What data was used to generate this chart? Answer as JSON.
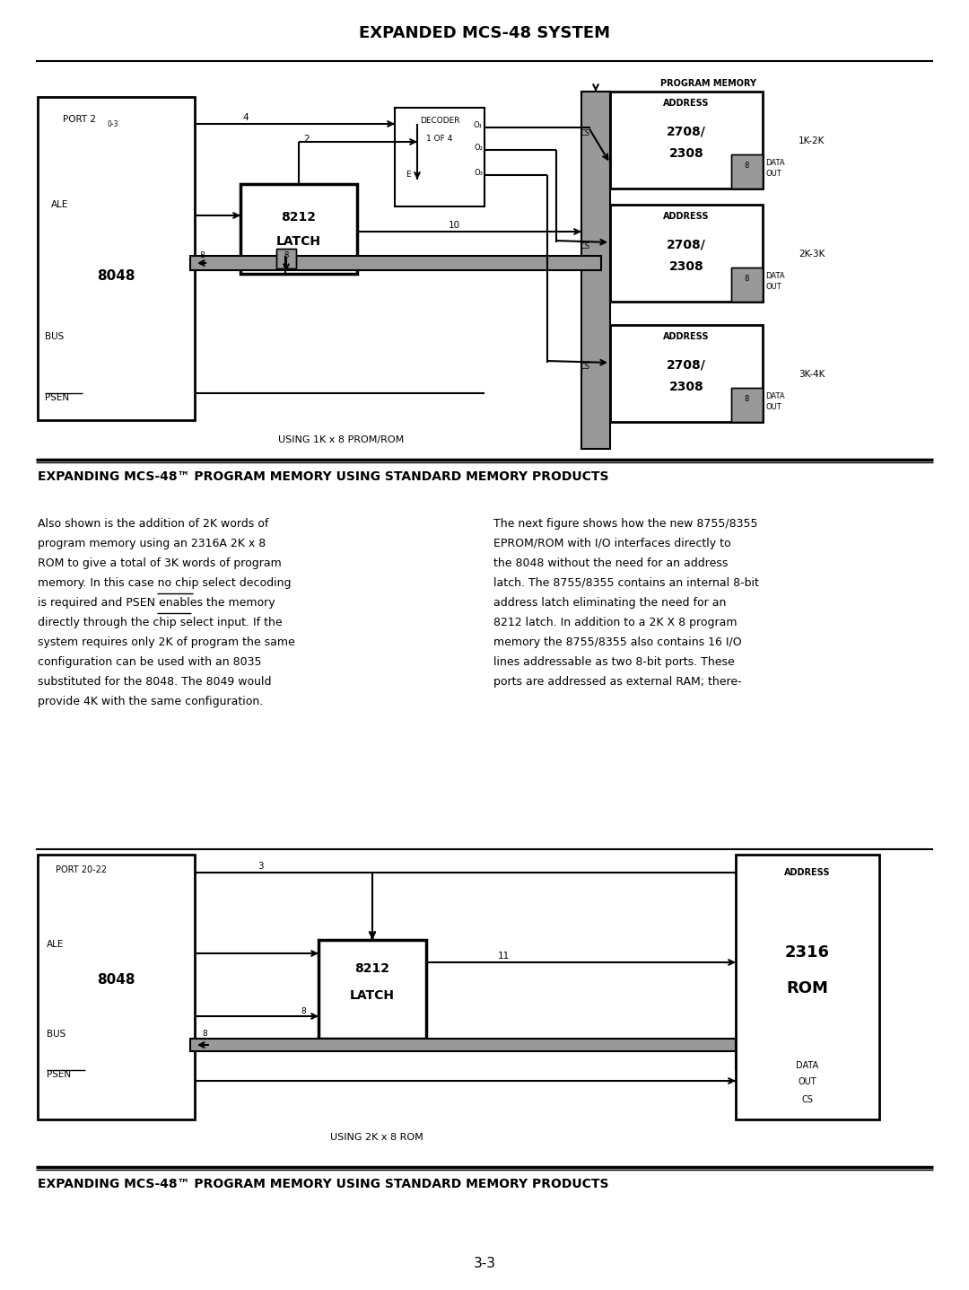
{
  "title": "EXPANDED MCS-48 SYSTEM",
  "section1_title": "EXPANDING MCS-48™ PROGRAM MEMORY USING STANDARD MEMORY PRODUCTS",
  "section2_title": "EXPANDING MCS-48™ PROGRAM MEMORY USING STANDARD MEMORY PRODUCTS",
  "page_num": "3-3",
  "left_text_lines": [
    "Also shown is the addition of 2K words of",
    "program memory using an 2316A 2K x 8",
    "ROM to give a total of 3K words of program",
    "memory. In this case no chip select decoding",
    "is required and PSEN enables the memory",
    "directly through the chip select input. If the",
    "system requires only 2K of program the same",
    "configuration can be used with an 8035",
    "substituted for the 8048. The 8049 would",
    "provide 4K with the same configuration."
  ],
  "right_text_lines": [
    "The next figure shows how the new 8755/8355",
    "EPROM/ROM with I/O interfaces directly to",
    "the 8048 without the need for an address",
    "latch. The 8755/8355 contains an internal 8-bit",
    "address latch eliminating the need for an",
    "8212 latch. In addition to a 2K X 8 program",
    "memory the 8755/8355 also contains 16 I/O",
    "lines addressable as two 8-bit ports. These",
    "ports are addressed as external RAM; there-"
  ],
  "bg_color": "#ffffff",
  "text_color": "#000000",
  "gray_color": "#999999"
}
